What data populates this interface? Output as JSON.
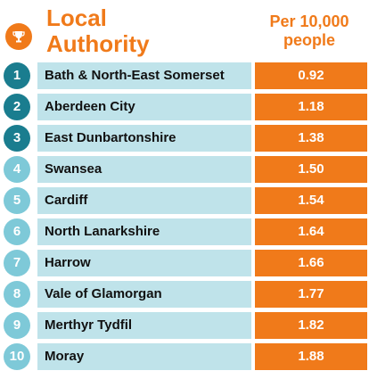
{
  "header": {
    "title_line1": "Local",
    "title_line2": "Authority",
    "column_line1": "Per 10,000",
    "column_line2": "people",
    "icon": "trophy-icon"
  },
  "colors": {
    "accent": "#f07a1a",
    "name_bg": "#bfe3ea",
    "rank_dark": "#1a7d8f",
    "rank_light": "#7ec9d8"
  },
  "chart_data": {
    "type": "table",
    "title": "",
    "columns": [
      "Local Authority",
      "Per 10,000 people"
    ],
    "rows": [
      {
        "rank": "1",
        "name": "Bath & North-East Somerset",
        "value": "0.92"
      },
      {
        "rank": "2",
        "name": "Aberdeen City",
        "value": "1.18"
      },
      {
        "rank": "3",
        "name": "East Dunbartonshire",
        "value": "1.38"
      },
      {
        "rank": "4",
        "name": "Swansea",
        "value": "1.50"
      },
      {
        "rank": "5",
        "name": "Cardiff",
        "value": "1.54"
      },
      {
        "rank": "6",
        "name": "North Lanarkshire",
        "value": "1.64"
      },
      {
        "rank": "7",
        "name": "Harrow",
        "value": "1.66"
      },
      {
        "rank": "8",
        "name": "Vale of Glamorgan",
        "value": "1.77"
      },
      {
        "rank": "9",
        "name": "Merthyr Tydfil",
        "value": "1.82"
      },
      {
        "rank": "10",
        "name": "Moray",
        "value": "1.88"
      }
    ]
  }
}
